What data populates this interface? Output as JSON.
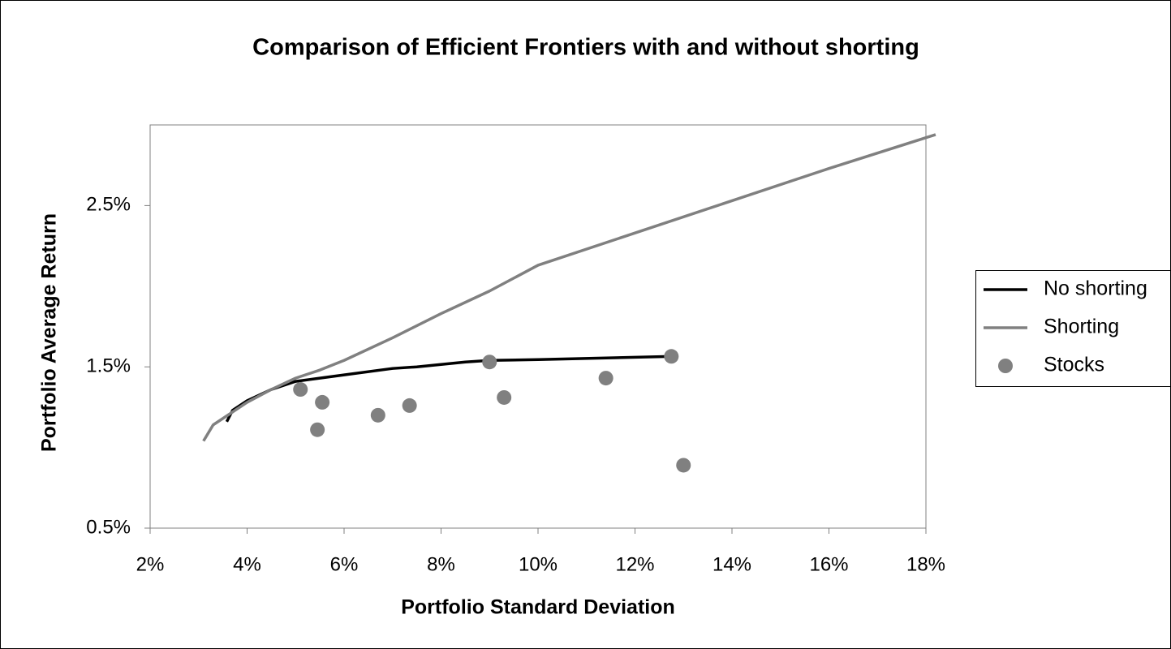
{
  "chart_data": {
    "type": "scatter",
    "title": "Comparison of Efficient Frontiers with and without shorting",
    "x_label": "Portfolio Standard Deviation",
    "y_label": "Portfolio Average Return",
    "xlim": [
      2,
      18
    ],
    "ylim": [
      0.5,
      3.0
    ],
    "xticks": [
      {
        "value": 2,
        "label": "2%"
      },
      {
        "value": 4,
        "label": "4%"
      },
      {
        "value": 6,
        "label": "6%"
      },
      {
        "value": 8,
        "label": "8%"
      },
      {
        "value": 10,
        "label": "10%"
      },
      {
        "value": 12,
        "label": "12%"
      },
      {
        "value": 14,
        "label": "14%"
      },
      {
        "value": 16,
        "label": "16%"
      },
      {
        "value": 18,
        "label": "18%"
      }
    ],
    "yticks": [
      {
        "value": 0.5,
        "label": "0.5%"
      },
      {
        "value": 1.5,
        "label": "1.5%"
      },
      {
        "value": 2.5,
        "label": "2.5%"
      }
    ],
    "grid": false,
    "legend": "right",
    "series": [
      {
        "name": "No shorting",
        "mode": "line",
        "color": "#000000",
        "x": [
          3.58,
          3.7,
          4.0,
          4.5,
          5.0,
          5.5,
          6.0,
          7.0,
          7.5,
          8.5,
          9.0,
          10.0,
          12.8
        ],
        "values": [
          1.16,
          1.23,
          1.29,
          1.36,
          1.41,
          1.43,
          1.45,
          1.49,
          1.5,
          1.53,
          1.54,
          1.545,
          1.565
        ]
      },
      {
        "name": "Shorting",
        "mode": "line",
        "color": "#808080",
        "x": [
          3.1,
          3.3,
          3.7,
          4.0,
          4.5,
          5.0,
          5.5,
          6.0,
          7.0,
          8.0,
          9.0,
          10.0,
          12.0,
          14.0,
          16.0,
          18.2
        ],
        "values": [
          1.04,
          1.14,
          1.22,
          1.28,
          1.36,
          1.43,
          1.48,
          1.54,
          1.68,
          1.83,
          1.97,
          2.13,
          2.33,
          2.53,
          2.73,
          2.94
        ]
      },
      {
        "name": "Stocks",
        "mode": "markers",
        "color": "#808080",
        "x": [
          5.1,
          5.45,
          5.55,
          6.7,
          7.35,
          9.0,
          9.3,
          11.4,
          12.75,
          13.0
        ],
        "values": [
          1.36,
          1.11,
          1.28,
          1.2,
          1.26,
          1.53,
          1.31,
          1.43,
          1.565,
          0.89
        ]
      }
    ]
  }
}
